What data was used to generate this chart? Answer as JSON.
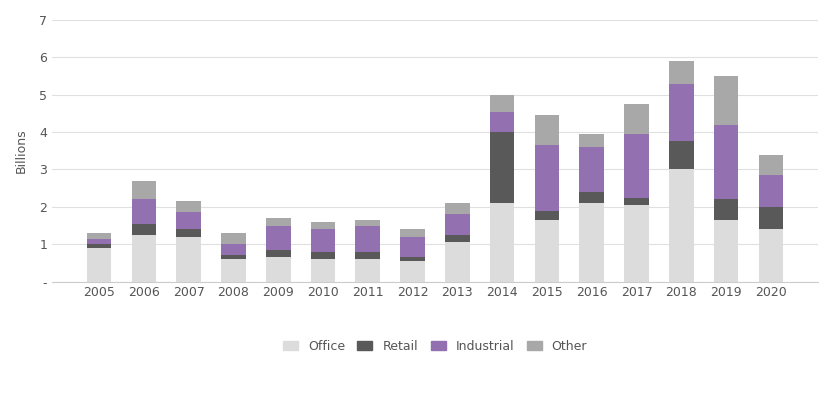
{
  "years": [
    2005,
    2006,
    2007,
    2008,
    2009,
    2010,
    2011,
    2012,
    2013,
    2014,
    2015,
    2016,
    2017,
    2018,
    2019,
    2020
  ],
  "office": [
    0.9,
    1.25,
    1.2,
    0.6,
    0.65,
    0.6,
    0.6,
    0.55,
    1.05,
    2.1,
    1.65,
    2.1,
    2.05,
    3.0,
    1.65,
    1.4
  ],
  "retail": [
    0.1,
    0.3,
    0.2,
    0.1,
    0.2,
    0.2,
    0.2,
    0.1,
    0.2,
    1.9,
    0.25,
    0.3,
    0.2,
    0.75,
    0.55,
    0.6
  ],
  "industrial": [
    0.15,
    0.65,
    0.45,
    0.3,
    0.65,
    0.6,
    0.7,
    0.55,
    0.55,
    0.55,
    1.75,
    1.2,
    1.7,
    1.55,
    2.0,
    0.85
  ],
  "other": [
    0.15,
    0.5,
    0.3,
    0.3,
    0.2,
    0.2,
    0.15,
    0.2,
    0.3,
    0.45,
    0.8,
    0.35,
    0.8,
    0.6,
    1.3,
    0.55
  ],
  "colors": {
    "office": "#dcdcdc",
    "retail": "#595959",
    "industrial": "#9370b0",
    "other": "#a8a8a8"
  },
  "ylabel": "Billions",
  "ylim": [
    0,
    7
  ],
  "yticks": [
    0,
    1,
    2,
    3,
    4,
    5,
    6,
    7
  ],
  "ytick_labels": [
    "-",
    "1",
    "2",
    "3",
    "4",
    "5",
    "6",
    "7"
  ],
  "legend_labels": [
    "Office",
    "Retail",
    "Industrial",
    "Other"
  ],
  "bar_width": 0.55,
  "figsize": [
    8.33,
    4.17
  ],
  "dpi": 100
}
